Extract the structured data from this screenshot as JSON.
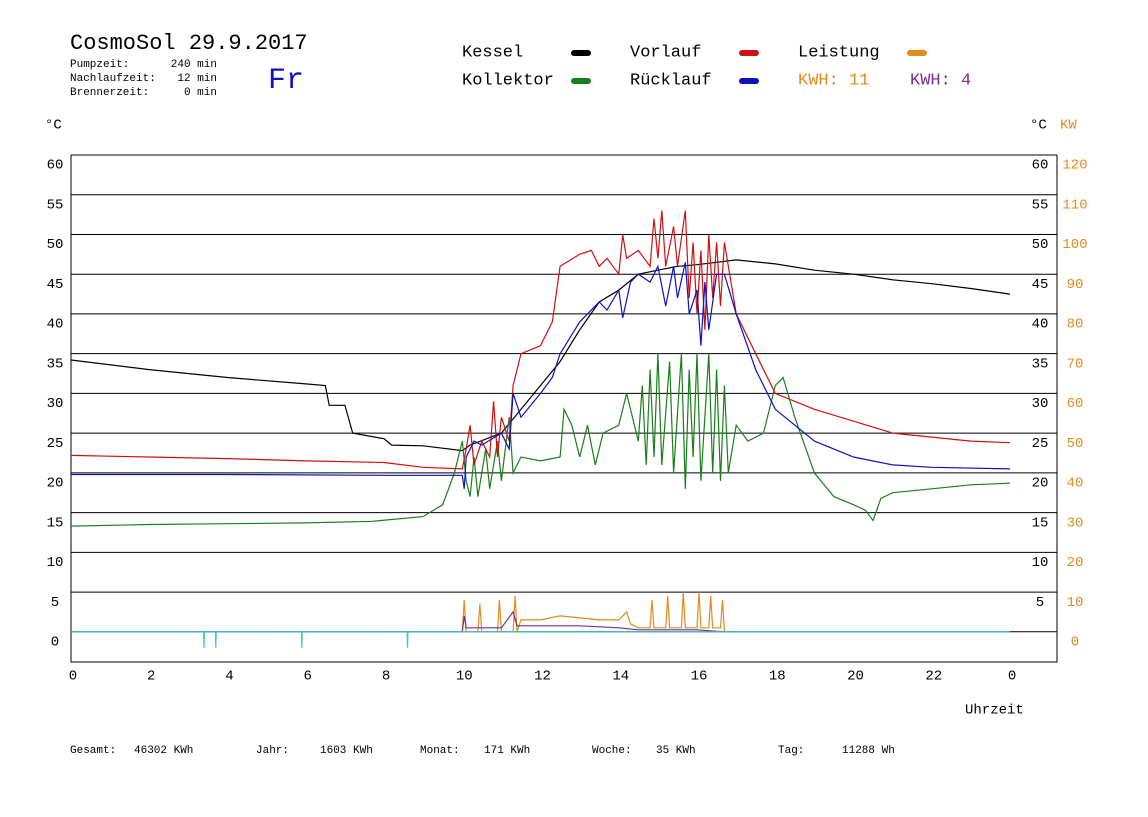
{
  "chart_data": {
    "type": "line",
    "title": "CosmoSol 29.9.2017",
    "day": "Fr",
    "info": [
      [
        "Pumpzeit:",
        "240 min"
      ],
      [
        "Nachlaufzeit:",
        "12 min"
      ],
      [
        "Brennerzeit:",
        "0 min"
      ]
    ],
    "kwh_labels": [
      {
        "text": "KWH: 11",
        "color": "#e58a1f"
      },
      {
        "text": "KWH: 4",
        "color": "#7b2c91"
      }
    ],
    "y_label": "°C",
    "y2_label": "°C",
    "y2_unit": "KW",
    "x_label": "Uhrzeit",
    "footer": [
      [
        "Gesamt:",
        "46302 KWh"
      ],
      [
        "Jahr:",
        "1603 KWh"
      ],
      [
        "Monat:",
        "171 KWh"
      ],
      [
        "Woche:",
        "35 KWh"
      ],
      [
        "Tag:",
        "11288 Wh"
      ]
    ],
    "xlim": [
      0,
      25.2
    ],
    "xticks": [
      0,
      2,
      4,
      6,
      8,
      10,
      12,
      14,
      16,
      18,
      20,
      22,
      {
        "value": 24,
        "label": "0"
      }
    ],
    "ylim": [
      -3.8,
      60
    ],
    "yticks": [
      0,
      5,
      10,
      15,
      20,
      25,
      30,
      35,
      40,
      45,
      50,
      55,
      60
    ],
    "y_right_ticks": [
      5,
      10,
      15,
      20,
      25,
      30,
      35,
      40,
      45,
      50,
      55,
      60
    ],
    "y2lim": [
      -7.6,
      120
    ],
    "y2ticks": [
      0,
      10,
      20,
      30,
      40,
      50,
      60,
      70,
      80,
      90,
      100,
      110,
      120
    ],
    "grid": true,
    "series": [
      {
        "name": "Kessel",
        "color": "#000000",
        "x": [
          0,
          2,
          4,
          6,
          6.5,
          6.6,
          7,
          7.2,
          8,
          8.2,
          9,
          10,
          10.2,
          11,
          11.5,
          12,
          12.5,
          13,
          13.5,
          14,
          14.5,
          15,
          15.5,
          16,
          16.5,
          17,
          18,
          19,
          20,
          21,
          22,
          23,
          24
        ],
        "values": [
          34.2,
          33,
          32,
          31.2,
          31,
          28.5,
          28.5,
          25,
          24.3,
          23.5,
          23.4,
          22.8,
          23.5,
          25,
          28,
          31,
          34,
          38,
          41.5,
          43,
          45,
          45.5,
          46,
          46.2,
          46.5,
          46.8,
          46.3,
          45.5,
          45,
          44.3,
          43.8,
          43.2,
          42.5
        ]
      },
      {
        "name": "Kollektor",
        "color": "#1a7f1a",
        "x": [
          0,
          2,
          4,
          6,
          7.7,
          9,
          9.5,
          9.8,
          10,
          10.1,
          10.2,
          10.3,
          10.4,
          10.6,
          10.7,
          10.9,
          11,
          11.2,
          11.3,
          11.5,
          12,
          12.5,
          12.6,
          12.8,
          13,
          13.2,
          13.4,
          13.6,
          14,
          14.2,
          14.5,
          14.6,
          14.7,
          14.8,
          14.9,
          15,
          15.1,
          15.3,
          15.4,
          15.6,
          15.7,
          15.8,
          15.9,
          16,
          16.1,
          16.3,
          16.4,
          16.5,
          16.6,
          16.7,
          16.8,
          17,
          17.3,
          17.7,
          18,
          18.2,
          18.5,
          19,
          19.5,
          20,
          20.3,
          20.5,
          20.7,
          21,
          22,
          23,
          24
        ],
        "values": [
          13.3,
          13.5,
          13.6,
          13.7,
          13.9,
          14.5,
          16,
          20,
          24,
          19,
          17,
          22,
          17,
          23,
          18,
          24,
          19,
          27,
          20,
          22,
          21.5,
          22,
          28,
          26,
          22,
          26,
          21,
          25,
          26,
          30,
          24,
          31,
          21,
          33,
          22,
          35,
          21,
          34,
          20,
          35,
          18,
          33,
          22,
          35,
          19,
          35,
          20,
          33,
          19,
          31,
          20,
          26,
          24,
          25,
          31,
          32,
          27,
          20,
          17,
          16,
          15.3,
          14,
          16.8,
          17.5,
          18,
          18.5,
          18.7
        ]
      },
      {
        "name": "Vorlauf",
        "color": "#d01010",
        "x": [
          0,
          2,
          4,
          6,
          8,
          9,
          10,
          10.1,
          10.2,
          10.3,
          10.5,
          10.7,
          10.8,
          10.9,
          11,
          11.2,
          11.3,
          11.5,
          12,
          12.3,
          12.5,
          13,
          13.3,
          13.5,
          13.7,
          14,
          14.1,
          14.2,
          14.5,
          14.8,
          14.9,
          15,
          15.1,
          15.2,
          15.4,
          15.5,
          15.7,
          15.8,
          15.9,
          16,
          16.1,
          16.2,
          16.3,
          16.4,
          16.5,
          16.6,
          16.7,
          17,
          17.5,
          18,
          19,
          20,
          21,
          22,
          23,
          24
        ],
        "values": [
          22.2,
          22,
          21.8,
          21.5,
          21.3,
          20.7,
          20.5,
          23,
          26,
          21,
          24,
          22,
          29,
          22,
          27,
          24,
          31,
          35,
          36,
          39,
          46,
          47.5,
          48,
          46,
          47,
          45,
          50,
          47,
          48,
          46,
          52,
          47,
          53,
          46,
          51,
          46,
          53,
          42,
          49,
          40,
          48,
          38,
          50,
          42,
          49,
          41,
          49,
          40,
          35,
          30,
          28,
          26.5,
          25,
          24.5,
          24,
          23.8
        ]
      },
      {
        "name": "Rücklauf",
        "color": "#1010c0",
        "x": [
          0,
          4,
          8,
          10,
          10.05,
          10.1,
          10.3,
          10.5,
          11,
          11.2,
          11.3,
          11.5,
          12,
          12.3,
          12.5,
          13,
          13.5,
          13.7,
          14,
          14.1,
          14.3,
          14.5,
          14.8,
          15,
          15.2,
          15.4,
          15.5,
          15.7,
          15.8,
          16,
          16.1,
          16.2,
          16.3,
          16.5,
          16.7,
          17,
          17.5,
          18,
          19,
          20,
          21,
          22,
          24
        ],
        "values": [
          19.8,
          19.8,
          19.7,
          19.7,
          18,
          22,
          24,
          23.5,
          25,
          23,
          30,
          27,
          30,
          32,
          35,
          39,
          41.5,
          40.5,
          43,
          39.5,
          44,
          45,
          44,
          46,
          41,
          46,
          42,
          46.5,
          40,
          43,
          36,
          44,
          38,
          45,
          45,
          40,
          33,
          28,
          24,
          22,
          21,
          20.7,
          20.5
        ]
      },
      {
        "name": "Leistung",
        "color": "#e58a1f",
        "axis": "y2",
        "x": [
          0,
          9.9,
          10,
          10.05,
          10.1,
          10.4,
          10.45,
          10.5,
          10.9,
          10.95,
          11,
          11.3,
          11.35,
          11.4,
          11.5,
          12,
          12.5,
          13,
          13.5,
          14,
          14.2,
          14.3,
          14.5,
          14.8,
          14.85,
          14.9,
          15.2,
          15.25,
          15.3,
          15.6,
          15.65,
          15.7,
          16,
          16.05,
          16.1,
          16.3,
          16.35,
          16.4,
          16.6,
          16.65,
          16.7,
          16.8,
          24
        ],
        "values": [
          0,
          0,
          0,
          8,
          0,
          0,
          7,
          0,
          0,
          8,
          0,
          0,
          9,
          0,
          3,
          3,
          4,
          3.5,
          3,
          3,
          5,
          2,
          1,
          1,
          8,
          1,
          1,
          9,
          1,
          1,
          10,
          1,
          1,
          10,
          1,
          1,
          9,
          1,
          1,
          8,
          0,
          0,
          0
        ]
      },
      {
        "color": "#7b2c91",
        "axis": "y2",
        "x": [
          0,
          10,
          10.05,
          10.1,
          11,
          11.3,
          11.4,
          12,
          13,
          14,
          14.5,
          16,
          16.7,
          17,
          24
        ],
        "values": [
          0,
          0,
          4,
          1,
          1,
          5,
          1.5,
          1.5,
          1.5,
          1,
          0.5,
          0.5,
          0,
          0,
          0
        ]
      },
      {
        "color": "#33cccc",
        "x": [
          0,
          3.39,
          3.4,
          3.41,
          3.69,
          3.7,
          3.71,
          5.89,
          5.9,
          5.91,
          8.59,
          8.6,
          8.61,
          24
        ],
        "values": [
          0,
          0,
          -2,
          0,
          0,
          -2,
          0,
          0,
          -2,
          0,
          0,
          -2,
          0,
          0
        ]
      }
    ]
  }
}
